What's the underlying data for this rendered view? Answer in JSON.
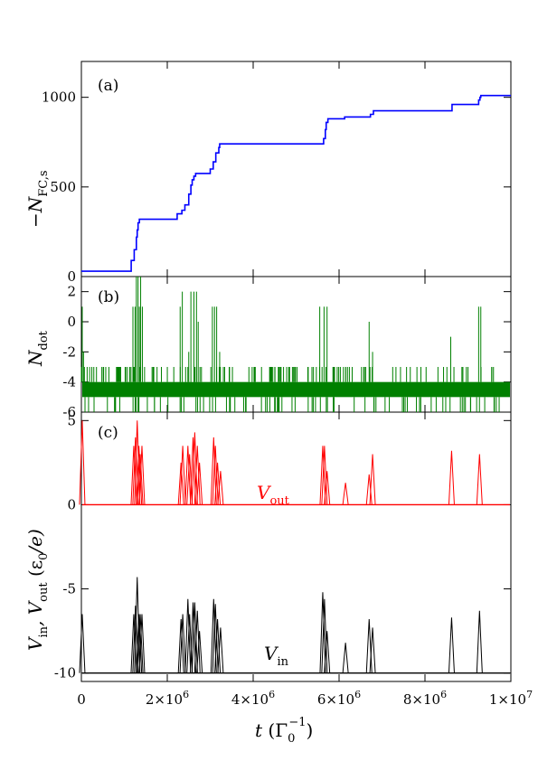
{
  "chart_data": [
    {
      "id": "a",
      "type": "line",
      "panel_label": "(a)",
      "ylabel": "−N",
      "ylabel_sub": "FC,s",
      "ylim": [
        0,
        1200
      ],
      "yticks": [
        0,
        500,
        1000
      ],
      "ytick_labels": [
        "0",
        "500",
        "1000"
      ],
      "series": [
        {
          "color": "#0000ff",
          "x": [
            0,
            1150000.0,
            1160000.0,
            1220000.0,
            1230000.0,
            1270000.0,
            1280000.0,
            1300000.0,
            1320000.0,
            1350000.0,
            1380000.0,
            1400000.0,
            2220000.0,
            2230000.0,
            2330000.0,
            2340000.0,
            2400000.0,
            2410000.0,
            2480000.0,
            2500000.0,
            2550000.0,
            2580000.0,
            2620000.0,
            2660000.0,
            2700000.0,
            2990000.0,
            3000000.0,
            3060000.0,
            3070000.0,
            3120000.0,
            3130000.0,
            3170000.0,
            3200000.0,
            3220000.0,
            5630000.0,
            5640000.0,
            5680000.0,
            5700000.0,
            5740000.0,
            5760000.0,
            6120000.0,
            6130000.0,
            6720000.0,
            6730000.0,
            6780000.0,
            6800000.0,
            8620000.0,
            8630000.0,
            9230000.0,
            9250000.0,
            9280000.0,
            9300000.0,
            10000000.0
          ],
          "y": [
            30,
            30,
            90,
            90,
            150,
            150,
            220,
            260,
            300,
            320,
            320,
            320,
            320,
            350,
            350,
            370,
            370,
            400,
            400,
            460,
            510,
            540,
            560,
            575,
            575,
            575,
            600,
            600,
            640,
            640,
            690,
            690,
            720,
            740,
            740,
            770,
            820,
            860,
            880,
            880,
            880,
            890,
            890,
            905,
            905,
            925,
            925,
            960,
            960,
            985,
            1000,
            1010,
            1010
          ]
        }
      ]
    },
    {
      "id": "b",
      "type": "line",
      "panel_label": "(b)",
      "ylabel": "N",
      "ylabel_sub": "dot",
      "ylim": [
        -6,
        3
      ],
      "yticks": [
        -6,
        -4,
        -2,
        0,
        2
      ],
      "ytick_labels": [
        "-6",
        "-4",
        "-2",
        "0",
        "2"
      ],
      "band": [
        -5,
        -4
      ],
      "series": [
        {
          "color": "#008000",
          "spikes_x": [
            20000.0,
            50000.0,
            1200000.0,
            1250000.0,
            1280000.0,
            1320000.0,
            1350000.0,
            1380000.0,
            1420000.0,
            2300000.0,
            2350000.0,
            2500000.0,
            2550000.0,
            2620000.0,
            2680000.0,
            2720000.0,
            3050000.0,
            3100000.0,
            3150000.0,
            3220000.0,
            5550000.0,
            5650000.0,
            5720000.0,
            6700000.0,
            6780000.0,
            8600000.0,
            9250000.0,
            9300000.0
          ],
          "spikes_top": [
            1,
            -2,
            1,
            1,
            3,
            3,
            1,
            3,
            1,
            1,
            2,
            -2,
            2,
            2,
            2,
            0,
            1,
            1,
            1,
            -2,
            1,
            1,
            1,
            0,
            -2,
            -1,
            1,
            1
          ],
          "noise_top": -3,
          "noise_bottom": -6
        }
      ]
    },
    {
      "id": "c",
      "type": "line",
      "panel_label": "(c)",
      "ylabel_parts": [
        "V",
        "in",
        ", V",
        "out",
        "  (ε",
        "0",
        "/e)"
      ],
      "ylim": [
        -10.5,
        5.5
      ],
      "yticks": [
        -10,
        -5,
        0,
        5
      ],
      "ytick_labels": [
        "-10",
        "-5",
        "0",
        "5"
      ],
      "series": [
        {
          "name": "V",
          "name_sub": "out",
          "color": "#ff0000",
          "baseline": 0,
          "spikes_x": [
            20000.0,
            1220000.0,
            1260000.0,
            1300000.0,
            1340000.0,
            1370000.0,
            1410000.0,
            2320000.0,
            2360000.0,
            2480000.0,
            2520000.0,
            2600000.0,
            2640000.0,
            2700000.0,
            2750000.0,
            3080000.0,
            3120000.0,
            3170000.0,
            3240000.0,
            5620000.0,
            5660000.0,
            5720000.0,
            6150000.0,
            6700000.0,
            6780000.0,
            8620000.0,
            9270000.0
          ],
          "spikes_y": [
            5,
            3.5,
            4,
            5,
            3.5,
            3,
            3.5,
            2.5,
            3.5,
            3.5,
            3,
            4,
            4.3,
            3.5,
            2.5,
            4,
            3.5,
            2.5,
            2,
            3.5,
            3.5,
            2,
            1.3,
            1.8,
            3,
            3.2,
            3
          ],
          "label_x": 4000000.0,
          "label_y": 1.0
        },
        {
          "name": "V",
          "name_sub": "in",
          "color": "#000000",
          "baseline": -10,
          "spikes_x": [
            20000.0,
            1220000.0,
            1260000.0,
            1300000.0,
            1340000.0,
            1370000.0,
            1410000.0,
            2320000.0,
            2360000.0,
            2480000.0,
            2520000.0,
            2600000.0,
            2640000.0,
            2700000.0,
            2750000.0,
            3080000.0,
            3120000.0,
            3170000.0,
            3240000.0,
            5620000.0,
            5660000.0,
            5720000.0,
            6150000.0,
            6700000.0,
            6780000.0,
            8620000.0,
            9270000.0
          ],
          "spikes_y": [
            -6.5,
            -6.5,
            -6,
            -4.3,
            -6.5,
            -6.5,
            -6.5,
            -6.8,
            -6.5,
            -5.6,
            -6.5,
            -5.8,
            -5.8,
            -6.3,
            -7.5,
            -5.6,
            -5.9,
            -6.8,
            -7.3,
            -5.2,
            -5.6,
            -7.5,
            -8.2,
            -6.8,
            -7.3,
            -6.7,
            -6.3
          ],
          "label_x": 4000000.0,
          "label_y": -9.1
        }
      ]
    }
  ],
  "x_axis": {
    "xlim": [
      0,
      10000000.0
    ],
    "ticks": [
      0,
      2000000.0,
      4000000.0,
      6000000.0,
      8000000.0,
      10000000.0
    ],
    "tick_labels": [
      {
        "base": "0",
        "exp": ""
      },
      {
        "base": "2×10",
        "exp": "6"
      },
      {
        "base": "4×10",
        "exp": "6"
      },
      {
        "base": "6×10",
        "exp": "6"
      },
      {
        "base": "8×10",
        "exp": "6"
      },
      {
        "base": "1×10",
        "exp": "7"
      }
    ],
    "label_parts": [
      "t",
      "  (Γ",
      "0",
      "−1",
      ")"
    ]
  }
}
